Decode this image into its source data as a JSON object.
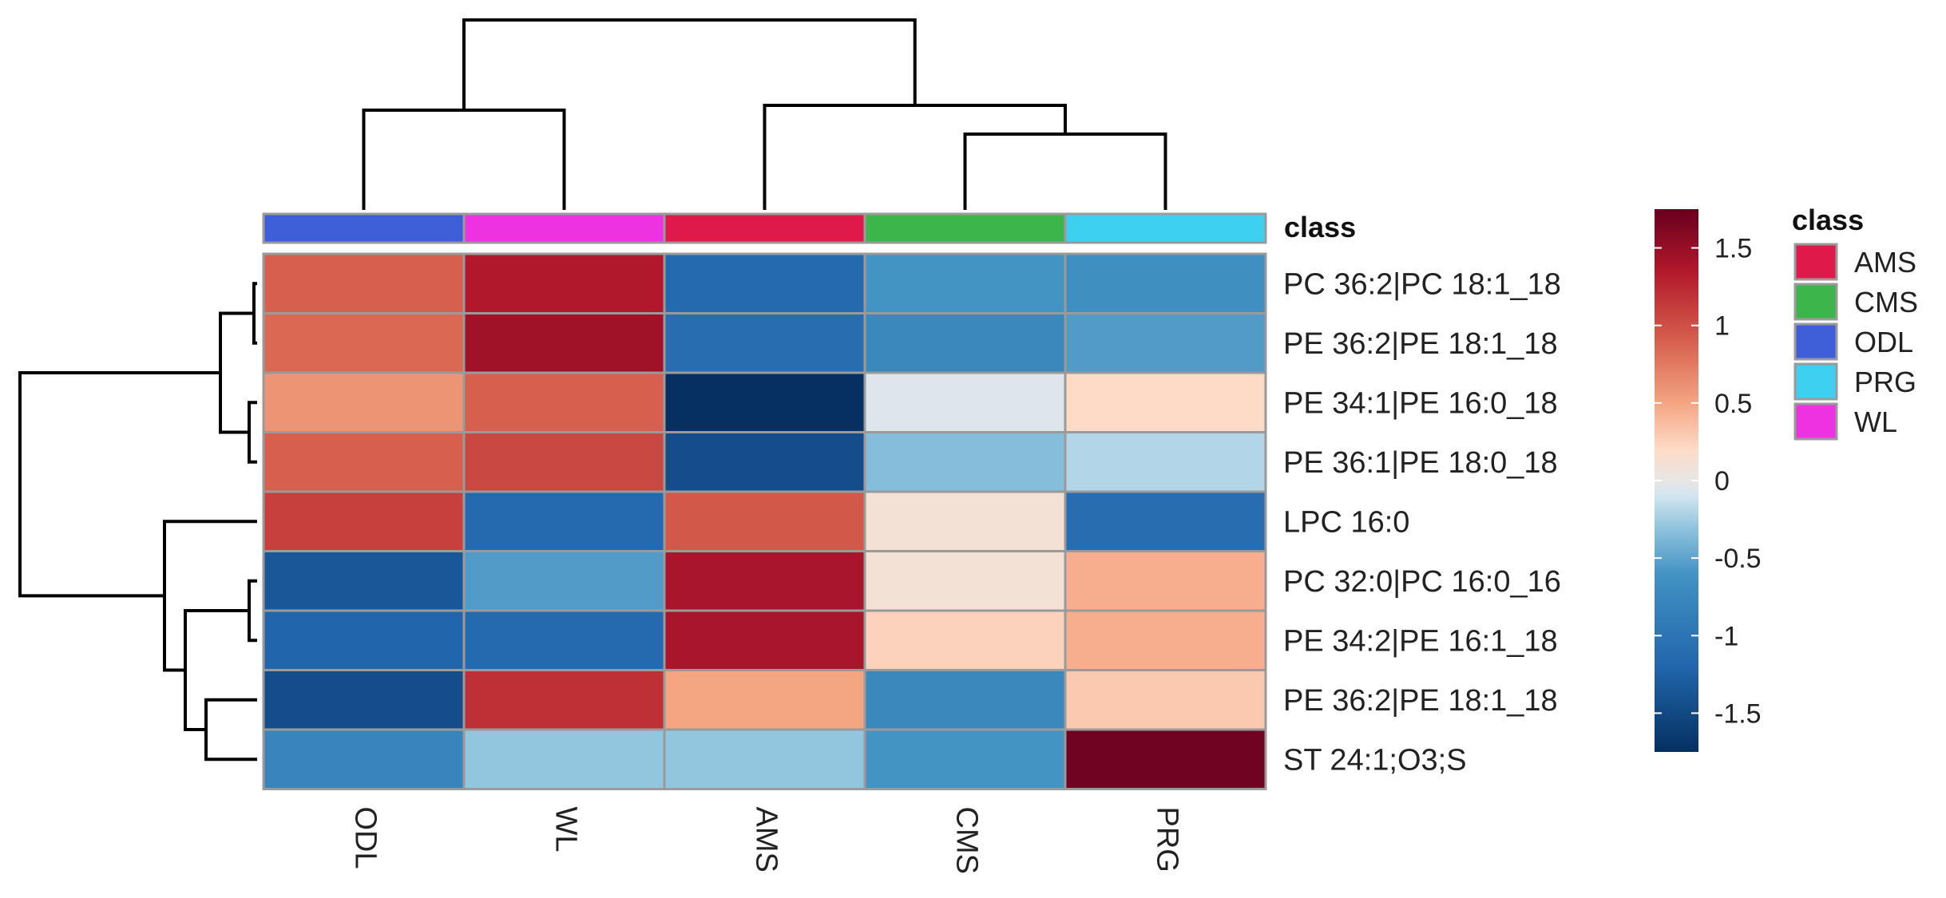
{
  "chart_data": {
    "type": "heatmap",
    "columns": [
      "ODL",
      "WL",
      "AMS",
      "CMS",
      "PRG"
    ],
    "rows": [
      "PC 36:2|PC 18:1_18",
      "PE 36:2|PE 18:1_18",
      "PE 34:1|PE 16:0_18",
      "PE 36:1|PE 18:0_18",
      "LPC 16:0",
      "PC 32:0|PC 16:0_16",
      "PE 34:2|PE 16:1_18",
      "PE 36:2|PE 18:1_18",
      "ST 24:1;O3;S"
    ],
    "values": [
      [
        0.9,
        1.35,
        -1.15,
        -0.6,
        -0.65
      ],
      [
        0.85,
        1.45,
        -1.1,
        -0.75,
        -0.55
      ],
      [
        0.6,
        0.9,
        -1.75,
        -0.05,
        0.2
      ],
      [
        0.9,
        1.05,
        -1.45,
        -0.35,
        -0.2
      ],
      [
        1.1,
        -1.15,
        0.95,
        0.1,
        -1.1
      ],
      [
        -1.35,
        -0.55,
        1.4,
        0.1,
        0.45
      ],
      [
        -1.2,
        -1.15,
        1.4,
        0.25,
        0.45
      ],
      [
        -1.45,
        1.2,
        0.5,
        -0.75,
        0.3
      ],
      [
        -0.8,
        -0.3,
        -0.3,
        -0.6,
        1.7
      ]
    ],
    "color_scale": {
      "ticks": [
        1.5,
        1,
        0.5,
        0,
        -0.5,
        -1,
        -1.5
      ],
      "tick_labels": [
        "1.5",
        "1",
        "0.5",
        "0",
        "-0.5",
        "-1",
        "-1.5"
      ],
      "range": [
        -1.75,
        1.75
      ],
      "stops": [
        {
          "value": -1.75,
          "color": "#053061"
        },
        {
          "value": -1.2,
          "color": "#2166ac"
        },
        {
          "value": -0.6,
          "color": "#4393c3"
        },
        {
          "value": -0.3,
          "color": "#92c5de"
        },
        {
          "value": -0.1,
          "color": "#d1e5f0"
        },
        {
          "value": 0,
          "color": "#e8e6e4"
        },
        {
          "value": 0.2,
          "color": "#fddbc7"
        },
        {
          "value": 0.5,
          "color": "#f4a582"
        },
        {
          "value": 0.9,
          "color": "#d6604d"
        },
        {
          "value": 1.35,
          "color": "#b2182b"
        },
        {
          "value": 1.75,
          "color": "#67001f"
        }
      ]
    },
    "class_annotation": {
      "label": "class",
      "column_classes": [
        "ODL",
        "WL",
        "AMS",
        "CMS",
        "PRG"
      ]
    },
    "legend": {
      "title": "class",
      "entries": [
        {
          "name": "AMS",
          "color": "#e0194b"
        },
        {
          "name": "CMS",
          "color": "#3cb54a"
        },
        {
          "name": "ODL",
          "color": "#3f5fd9"
        },
        {
          "name": "PRG",
          "color": "#3ed0f0"
        },
        {
          "name": "WL",
          "color": "#ee32e2"
        }
      ]
    },
    "column_dendrogram": "((ODL,WL),(AMS,(CMS,PRG)))",
    "row_dendrogram": "((((PC 36:2|PC 18:1_18,PE 36:2|PE 18:1_18),(PE 34:1|PE 16:0_18,PE 36:1|PE 18:0_18))),(LPC 16:0,((PC 32:0|PC 16:0_16,PE 34:2|PE 16:1_18),(PE 36:2|PE 18:1_18,ST 24:1;O3;S))))"
  }
}
